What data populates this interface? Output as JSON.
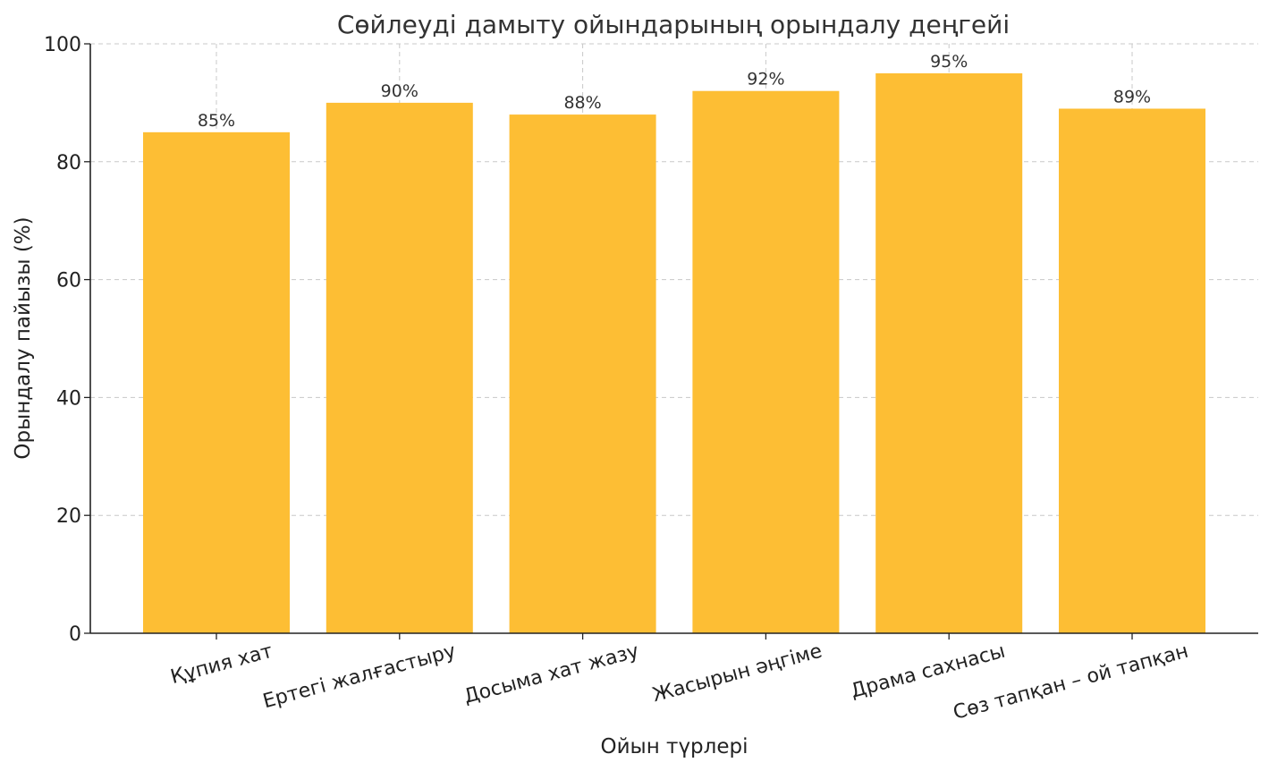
{
  "chart_data": {
    "type": "bar",
    "title": "Сөйлеуді дамыту ойындарының орындалу деңгейі",
    "xlabel": "Ойын түрлері",
    "ylabel": "Орындалу пайызы (%)",
    "categories": [
      "Құпия хат",
      "Ертегі жалғастыру",
      "Досыма хат жазу",
      "Жасырын әңгіме",
      "Драма сахнасы",
      "Сөз тапқан – ой тапқан"
    ],
    "values": [
      85,
      90,
      88,
      92,
      95,
      89
    ],
    "data_labels": [
      "85%",
      "90%",
      "88%",
      "92%",
      "95%",
      "89%"
    ],
    "ylim": [
      0,
      100
    ],
    "yticks": [
      0,
      20,
      40,
      60,
      80,
      100
    ],
    "grid": true,
    "bar_color": "#FDBE34"
  }
}
